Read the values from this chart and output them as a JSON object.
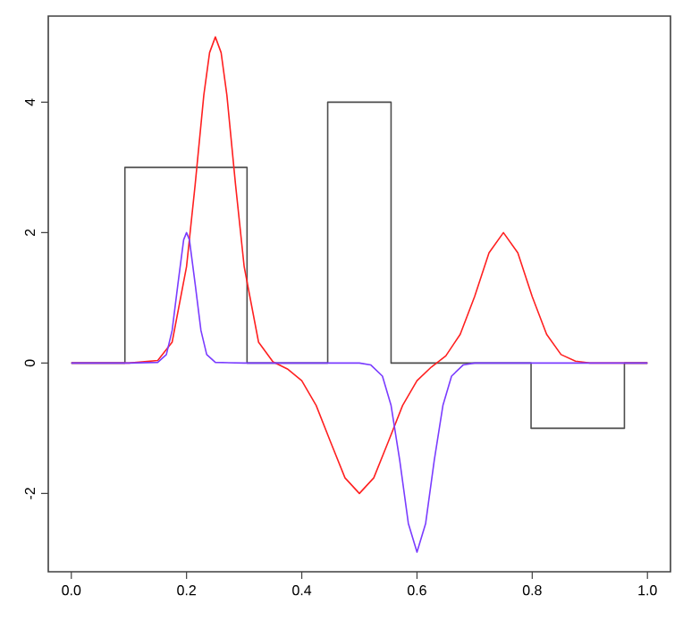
{
  "chart_data": {
    "type": "line",
    "xlim": [
      -0.04,
      1.04
    ],
    "ylim": [
      -3.2,
      5.32
    ],
    "xticks": [
      {
        "value": 0,
        "label": "0.0"
      },
      {
        "value": 0.2,
        "label": "0.2"
      },
      {
        "value": 0.4,
        "label": "0.4"
      },
      {
        "value": 0.6,
        "label": "0.6"
      },
      {
        "value": 0.8,
        "label": "0.8"
      },
      {
        "value": 1,
        "label": "1.0"
      }
    ],
    "yticks": [
      -2,
      0,
      2,
      4
    ],
    "series": [
      {
        "type": "step",
        "color": "#4d4d4d",
        "x": [
          0,
          0.093,
          0.305,
          0.445,
          0.555,
          0.798,
          0.96,
          1
        ],
        "values": [
          0,
          3,
          0,
          4,
          0,
          -1,
          0,
          0
        ]
      },
      {
        "type": "line",
        "color": "#ff2020",
        "x": [
          0,
          0.1,
          0.15,
          0.175,
          0.2,
          0.215,
          0.23,
          0.24,
          0.25,
          0.26,
          0.27,
          0.285,
          0.3,
          0.325,
          0.35,
          0.375,
          0.4,
          0.425,
          0.45,
          0.475,
          0.5,
          0.525,
          0.55,
          0.575,
          0.6,
          0.625,
          0.65,
          0.675,
          0.7,
          0.725,
          0.75,
          0.775,
          0.8,
          0.825,
          0.85,
          0.875,
          0.9,
          1
        ],
        "values": [
          0,
          0,
          0.04,
          0.32,
          1.48,
          2.74,
          4.11,
          4.76,
          5,
          4.76,
          4.11,
          2.74,
          1.48,
          0.32,
          0.02,
          -0.09,
          -0.27,
          -0.65,
          -1.21,
          -1.76,
          -2,
          -1.76,
          -1.21,
          -0.65,
          -0.27,
          -0.06,
          0.11,
          0.44,
          1.02,
          1.69,
          2,
          1.69,
          1.02,
          0.44,
          0.13,
          0.03,
          0,
          0
        ]
      },
      {
        "type": "line",
        "color": "#7a3cff",
        "x": [
          0,
          0.1,
          0.15,
          0.165,
          0.175,
          0.185,
          0.195,
          0.2,
          0.205,
          0.215,
          0.225,
          0.235,
          0.25,
          0.3,
          0.5,
          0.52,
          0.54,
          0.555,
          0.57,
          0.585,
          0.6,
          0.615,
          0.63,
          0.645,
          0.66,
          0.68,
          0.7,
          1
        ],
        "values": [
          0,
          0,
          0.01,
          0.13,
          0.5,
          1.21,
          1.89,
          2,
          1.89,
          1.21,
          0.5,
          0.13,
          0.01,
          0,
          0,
          -0.03,
          -0.2,
          -0.65,
          -1.49,
          -2.46,
          -2.9,
          -2.46,
          -1.49,
          -0.65,
          -0.2,
          -0.03,
          0,
          0
        ]
      }
    ]
  }
}
